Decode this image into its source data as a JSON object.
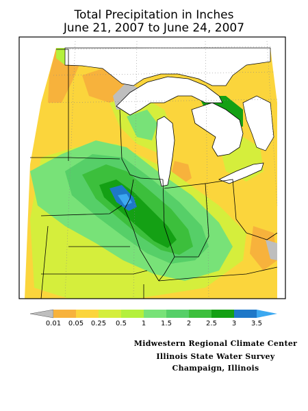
{
  "title": {
    "line1": "Total Precipitation in Inches",
    "line2": "June 21, 2007 to June 24, 2007"
  },
  "legend": {
    "labels": [
      "0.01",
      "0.05",
      "0.25",
      "0.5",
      "1",
      "1.5",
      "2",
      "2.5",
      "3",
      "3.5"
    ],
    "colors": {
      "none": "#bebebe",
      "b0_01": "#f7b23c",
      "b0_05": "#fbd53c",
      "b0_25": "#d5ee3c",
      "b0_5": "#b4f03c",
      "b1": "#78e278",
      "b1_5": "#56cf68",
      "b2": "#3cbf3c",
      "b2_5": "#14a014",
      "b3": "#1e78c8",
      "b3_5": "#3ca8f0"
    }
  },
  "credits": {
    "line1": "Midwestern Regional Climate Center",
    "line2": "Illinois State Water Survey",
    "line3": "Champaign, Illinois"
  }
}
